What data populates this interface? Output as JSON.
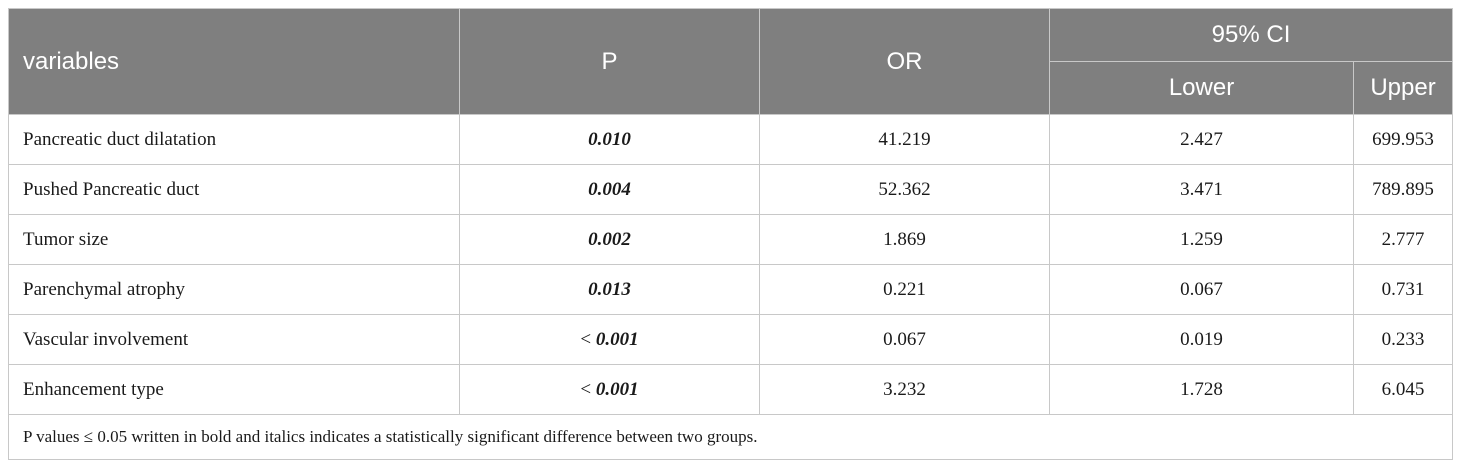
{
  "table": {
    "header": {
      "variables": "variables",
      "p": "P",
      "or": "OR",
      "ci": "95% CI",
      "lower": "Lower",
      "upper": "Upper"
    },
    "rows": [
      {
        "variable": "Pancreatic duct dilatation",
        "p_prefix": "",
        "p": "0.010",
        "or": "41.219",
        "lower": "2.427",
        "upper": "699.953"
      },
      {
        "variable": "Pushed Pancreatic duct",
        "p_prefix": "",
        "p": "0.004",
        "or": "52.362",
        "lower": "3.471",
        "upper": "789.895"
      },
      {
        "variable": "Tumor size",
        "p_prefix": "",
        "p": "0.002",
        "or": "1.869",
        "lower": "1.259",
        "upper": "2.777"
      },
      {
        "variable": "Parenchymal atrophy",
        "p_prefix": "",
        "p": "0.013",
        "or": "0.221",
        "lower": "0.067",
        "upper": "0.731"
      },
      {
        "variable": "Vascular involvement",
        "p_prefix": "< ",
        "p": "0.001",
        "or": "0.067",
        "lower": "0.019",
        "upper": "0.233"
      },
      {
        "variable": "Enhancement type",
        "p_prefix": "< ",
        "p": "0.001",
        "or": "3.232",
        "lower": "1.728",
        "upper": "6.045"
      }
    ],
    "footnote": "P values ≤ 0.05 written in bold and italics indicates a statistically significant difference between two groups."
  }
}
